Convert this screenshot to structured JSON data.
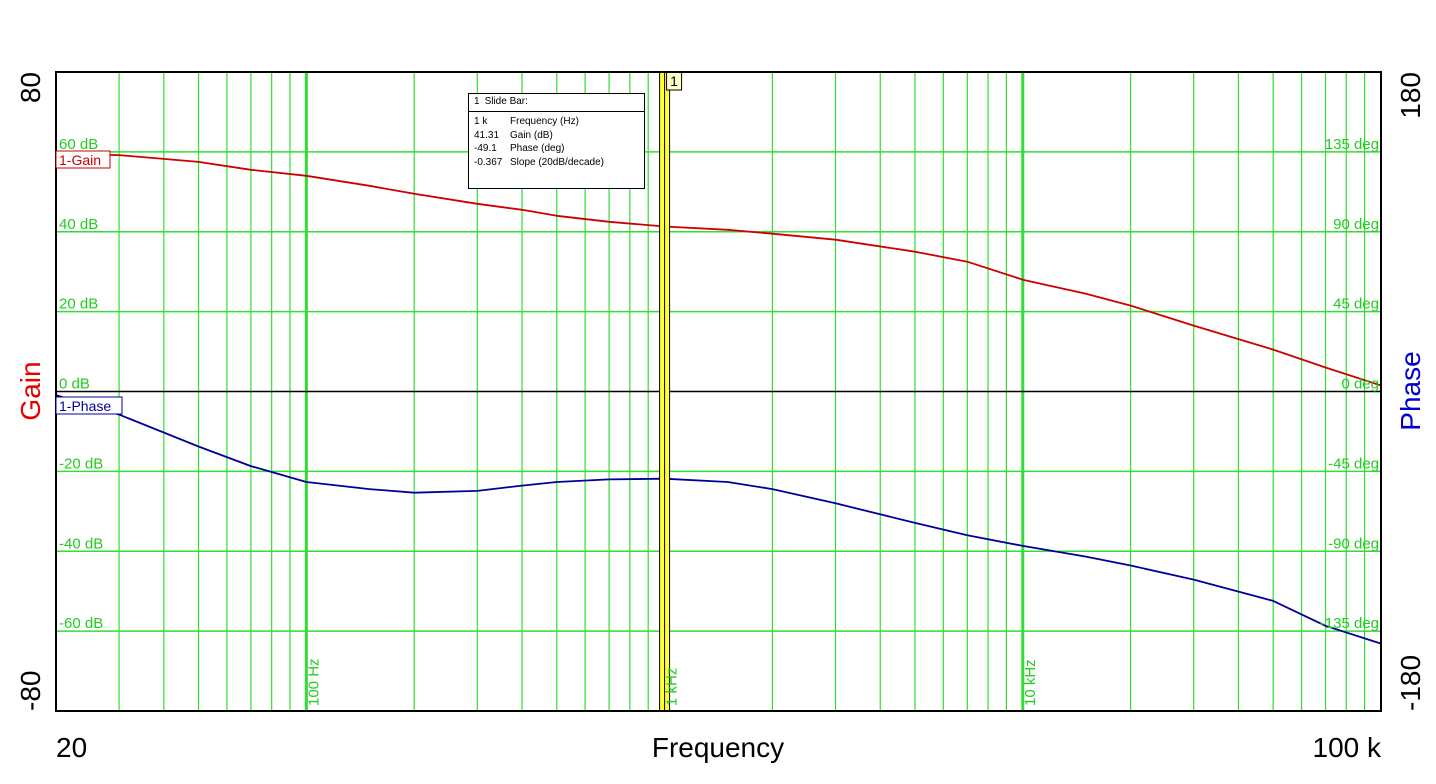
{
  "chart_data": {
    "type": "line",
    "xlabel": "Frequency",
    "x_scale": "log",
    "xlim": [
      20,
      100000
    ],
    "x_range_labels": [
      "20",
      "100 k"
    ],
    "x_grid_labels": [
      "100 Hz",
      "1 kHz",
      "10 kHz"
    ],
    "left_axis": {
      "label": "Gain",
      "color": "#e60000",
      "ylim": [
        -80,
        80
      ],
      "end_labels": [
        "80",
        "-80"
      ],
      "grid_labels": [
        "60 dB",
        "40 dB",
        "20 dB",
        "0 dB",
        "-20 dB",
        "-40 dB",
        "-60 dB"
      ]
    },
    "right_axis": {
      "label": "Phase",
      "color": "#0000cc",
      "ylim": [
        -180,
        180
      ],
      "end_labels": [
        "180",
        "-180"
      ],
      "grid_labels": [
        "135 deg",
        "90 deg",
        "45 deg",
        "0 deg",
        "-45 deg",
        "-90 deg",
        "-135 deg"
      ]
    },
    "grid": true,
    "grid_color": "#33dd33",
    "series": [
      {
        "name": "1-Gain",
        "axis": "left",
        "color": "#cc0000",
        "x": [
          20,
          30,
          50,
          70,
          100,
          150,
          200,
          300,
          400,
          500,
          700,
          1000,
          1500,
          2000,
          3000,
          5000,
          7000,
          10000,
          15000,
          20000,
          30000,
          50000,
          70000,
          100000
        ],
        "y": [
          59.5,
          59.2,
          57.5,
          55.5,
          54.0,
          51.5,
          49.5,
          47.0,
          45.5,
          44.0,
          42.5,
          41.31,
          40.5,
          39.5,
          38.0,
          35.0,
          32.5,
          28.0,
          24.5,
          21.5,
          16.5,
          10.5,
          6.0,
          1.5
        ]
      },
      {
        "name": "1-Phase",
        "axis": "right",
        "color": "#000099",
        "x": [
          20,
          30,
          50,
          70,
          100,
          150,
          200,
          300,
          400,
          500,
          700,
          1000,
          1500,
          2000,
          3000,
          5000,
          7000,
          10000,
          15000,
          20000,
          30000,
          50000,
          70000,
          100000
        ],
        "y": [
          -2,
          -13,
          -31,
          -42,
          -51,
          -55,
          -57,
          -56,
          -53,
          -51,
          -49.5,
          -49.1,
          -51,
          -55,
          -63,
          -74,
          -81,
          -87,
          -93,
          -98,
          -106,
          -118,
          -132,
          -142
        ]
      }
    ],
    "marker": {
      "label": "1",
      "x": 1000,
      "color": "#ffff33",
      "readout": {
        "title": "Slide Bar:",
        "id": "1",
        "rows": [
          {
            "value": "1 k",
            "label": "Frequency (Hz)"
          },
          {
            "value": "41.31",
            "label": "Gain (dB)"
          },
          {
            "value": "-49.1",
            "label": "Phase (deg)"
          },
          {
            "value": "-0.367",
            "label": "Slope (20dB/decade)"
          }
        ]
      }
    }
  }
}
